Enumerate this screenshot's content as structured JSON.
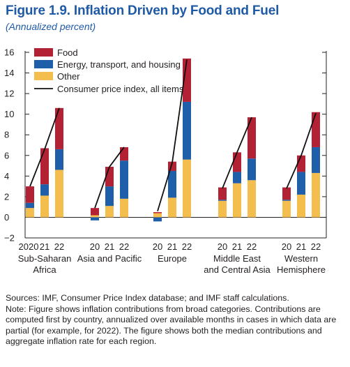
{
  "figure": {
    "title": "Figure 1.9.  Inflation Driven by Food and Fuel",
    "subtitle": "(Annualized percent)"
  },
  "colors": {
    "food": "#b32134",
    "energy": "#1f5ea8",
    "other": "#f4be4f",
    "cpi": "#111111"
  },
  "chart_data": {
    "type": "bar",
    "stacked": true,
    "ylim": [
      -2,
      16
    ],
    "yticks": [
      -2,
      0,
      2,
      4,
      6,
      8,
      10,
      12,
      14,
      16
    ],
    "grid": false,
    "legend_position": "top-left",
    "groups": [
      {
        "label": "Sub-Saharan Africa",
        "label_lines": [
          "Sub-Saharan",
          "Africa"
        ],
        "years": [
          "2020",
          "21",
          "22"
        ]
      },
      {
        "label": "Asia and Pacific",
        "label_lines": [
          "Asia and Pacific"
        ],
        "years": [
          "20",
          "21",
          "22"
        ]
      },
      {
        "label": "Europe",
        "label_lines": [
          "Europe"
        ],
        "years": [
          "20",
          "21",
          "22"
        ]
      },
      {
        "label": "Middle East and Central Asia",
        "label_lines": [
          "Middle East",
          "and Central Asia"
        ],
        "years": [
          "20",
          "21",
          "22"
        ]
      },
      {
        "label": "Western Hemisphere",
        "label_lines": [
          "Western",
          "Hemisphere"
        ],
        "years": [
          "20",
          "21",
          "22"
        ]
      }
    ],
    "series": [
      {
        "name": "Food",
        "key": "food",
        "values": [
          [
            1.6,
            3.5,
            4.0
          ],
          [
            0.7,
            1.9,
            1.3
          ],
          [
            0.1,
            0.9,
            4.2
          ],
          [
            1.2,
            1.9,
            4.0
          ],
          [
            1.2,
            1.6,
            3.4
          ]
        ]
      },
      {
        "name": "Energy, transport, and housing",
        "key": "energy",
        "values": [
          [
            0.5,
            1.1,
            2.0
          ],
          [
            -0.3,
            1.9,
            3.7
          ],
          [
            -0.4,
            2.6,
            5.6
          ],
          [
            0.1,
            1.1,
            2.1
          ],
          [
            0.1,
            2.2,
            2.5
          ]
        ]
      },
      {
        "name": "Other",
        "key": "other",
        "values": [
          [
            0.9,
            2.1,
            4.6
          ],
          [
            0.2,
            1.1,
            1.8
          ],
          [
            0.4,
            1.9,
            5.6
          ],
          [
            1.6,
            3.3,
            3.6
          ],
          [
            1.6,
            2.2,
            4.3
          ]
        ]
      }
    ],
    "cpi": {
      "name": "Consumer price index, all items",
      "values": [
        [
          3.0,
          6.6,
          10.6
        ],
        [
          0.9,
          4.9,
          6.8
        ],
        [
          0.6,
          5.3,
          15.3
        ],
        [
          2.8,
          6.3,
          9.7
        ],
        [
          2.8,
          6.0,
          10.1
        ]
      ]
    }
  },
  "notes": {
    "sources": "Sources: IMF, Consumer Price Index database; and IMF staff calculations.",
    "note": "Note: Figure shows inflation contributions from broad categories. Contributions are computed first by country, annualized over available months in cases in which data are partial (for example, for 2022). The figure shows both the median contributions and aggregate inflation rate for each region."
  }
}
